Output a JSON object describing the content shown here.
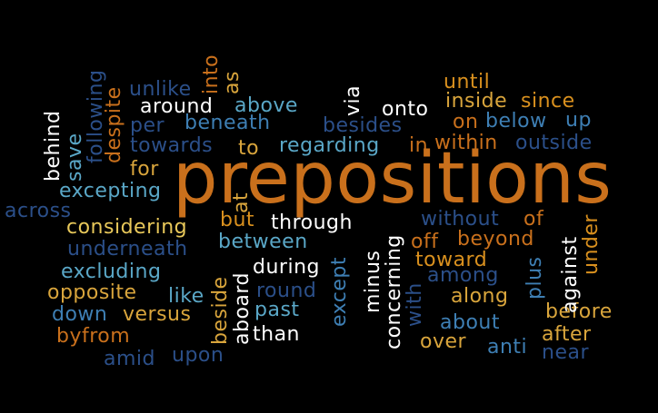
{
  "words": [
    {
      "text": "prepositions",
      "color": "#c9701c"
    },
    {
      "text": "until",
      "color": "#d9901e"
    },
    {
      "text": "inside",
      "color": "#d9a53c"
    },
    {
      "text": "since",
      "color": "#d9901e"
    },
    {
      "text": "onto",
      "color": "#ffffff"
    },
    {
      "text": "on",
      "color": "#c9701c"
    },
    {
      "text": "below",
      "color": "#3e7fb4"
    },
    {
      "text": "up",
      "color": "#3e7fb4"
    },
    {
      "text": "besides",
      "color": "#2b4f89"
    },
    {
      "text": "in",
      "color": "#c9701c"
    },
    {
      "text": "within",
      "color": "#c9701c"
    },
    {
      "text": "outside",
      "color": "#2b4f89"
    },
    {
      "text": "unlike",
      "color": "#2b4f89"
    },
    {
      "text": "around",
      "color": "#ffffff"
    },
    {
      "text": "above",
      "color": "#5aa7c7"
    },
    {
      "text": "per",
      "color": "#2b4f89"
    },
    {
      "text": "beneath",
      "color": "#3e7fb4"
    },
    {
      "text": "towards",
      "color": "#2b4f89"
    },
    {
      "text": "to",
      "color": "#d9a53c"
    },
    {
      "text": "regarding",
      "color": "#5aa7c7"
    },
    {
      "text": "for",
      "color": "#d9a53c"
    },
    {
      "text": "excepting",
      "color": "#5aa7c7"
    },
    {
      "text": "across",
      "color": "#2b4f89"
    },
    {
      "text": "considering",
      "color": "#e8c85a"
    },
    {
      "text": "but",
      "color": "#d9901e"
    },
    {
      "text": "through",
      "color": "#ffffff"
    },
    {
      "text": "without",
      "color": "#2b4f89"
    },
    {
      "text": "of",
      "color": "#c9701c"
    },
    {
      "text": "underneath",
      "color": "#2b4f89"
    },
    {
      "text": "between",
      "color": "#5aa7c7"
    },
    {
      "text": "off",
      "color": "#c9701c"
    },
    {
      "text": "beyond",
      "color": "#c9701c"
    },
    {
      "text": "toward",
      "color": "#d9901e"
    },
    {
      "text": "excluding",
      "color": "#5aa7c7"
    },
    {
      "text": "during",
      "color": "#ffffff"
    },
    {
      "text": "among",
      "color": "#2b4f89"
    },
    {
      "text": "opposite",
      "color": "#d9a53c"
    },
    {
      "text": "like",
      "color": "#5aa7c7"
    },
    {
      "text": "round",
      "color": "#2b4f89"
    },
    {
      "text": "along",
      "color": "#d9a53c"
    },
    {
      "text": "down",
      "color": "#3e7fb4"
    },
    {
      "text": "versus",
      "color": "#d9a53c"
    },
    {
      "text": "past",
      "color": "#5aa7c7"
    },
    {
      "text": "before",
      "color": "#d9a53c"
    },
    {
      "text": "about",
      "color": "#3e7fb4"
    },
    {
      "text": "byfrom",
      "color": "#c9701c"
    },
    {
      "text": "than",
      "color": "#ffffff"
    },
    {
      "text": "over",
      "color": "#d9a53c"
    },
    {
      "text": "after",
      "color": "#d9a53c"
    },
    {
      "text": "anti",
      "color": "#3e7fb4"
    },
    {
      "text": "near",
      "color": "#2b4f89"
    },
    {
      "text": "amid",
      "color": "#2b4f89"
    },
    {
      "text": "upon",
      "color": "#2b4f89"
    },
    {
      "text": "into",
      "color": "#c9701c"
    },
    {
      "text": "as",
      "color": "#d9a53c"
    },
    {
      "text": "behind",
      "color": "#ffffff"
    },
    {
      "text": "save",
      "color": "#5aa7c7"
    },
    {
      "text": "following",
      "color": "#2b4f89"
    },
    {
      "text": "despite",
      "color": "#c9701c"
    },
    {
      "text": "via",
      "color": "#ffffff"
    },
    {
      "text": "at",
      "color": "#d9a53c"
    },
    {
      "text": "beside",
      "color": "#d9a53c"
    },
    {
      "text": "aboard",
      "color": "#ffffff"
    },
    {
      "text": "except",
      "color": "#3e7fb4"
    },
    {
      "text": "minus",
      "color": "#ffffff"
    },
    {
      "text": "concerning",
      "color": "#ffffff"
    },
    {
      "text": "with",
      "color": "#2b4f89"
    },
    {
      "text": "plus",
      "color": "#3e7fb4"
    },
    {
      "text": "against",
      "color": "#ffffff"
    },
    {
      "text": "under",
      "color": "#d9901e"
    }
  ]
}
